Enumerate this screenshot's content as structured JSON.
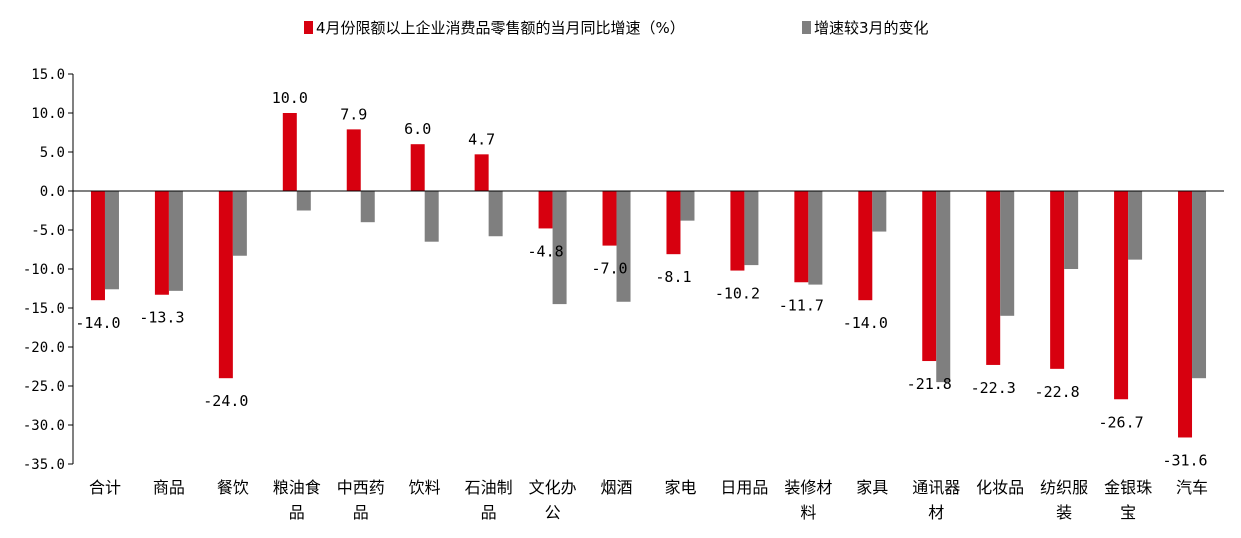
{
  "chart_data": {
    "type": "bar",
    "categories": [
      "合计",
      "商品",
      "餐饮",
      "粮油食品",
      "中西药品",
      "饮料",
      "石油制品",
      "文化办公",
      "烟酒",
      "家电",
      "日用品",
      "装修材料",
      "家具",
      "通讯器材",
      "化妆品",
      "纺织服装",
      "金银珠宝",
      "汽车"
    ],
    "series": [
      {
        "name": "4月份限额以上企业消费品零售额的当月同比增速（%）",
        "color": "#d7000f",
        "values": [
          -14.0,
          -13.3,
          -24.0,
          10.0,
          7.9,
          6.0,
          4.7,
          -4.8,
          -7.0,
          -8.1,
          -10.2,
          -11.7,
          -14.0,
          -21.8,
          -22.3,
          -22.8,
          -26.7,
          -31.6
        ],
        "labels": [
          "-14.0",
          "-13.3",
          "-24.0",
          "10.0",
          "7.9",
          "6.0",
          "4.7",
          "-4.8",
          "-7.0",
          "-8.1",
          "-10.2",
          "-11.7",
          "-14.0",
          "-21.8",
          "-22.3",
          "-22.8",
          "-26.7",
          "-31.6"
        ]
      },
      {
        "name": "增速较3月的变化",
        "color": "#7f7f7f",
        "values": [
          -12.6,
          -12.8,
          -8.3,
          -2.5,
          -4.0,
          -6.5,
          -5.8,
          -14.5,
          -14.2,
          -3.8,
          -9.5,
          -12.0,
          -5.2,
          -24.5,
          -16.0,
          -10.0,
          -8.8,
          -24.0
        ]
      }
    ],
    "ylim": [
      -35,
      15
    ],
    "yticks": [
      "15.0",
      "10.0",
      "5.0",
      "0.0",
      "-5.0",
      "-10.0",
      "-15.0",
      "-20.0",
      "-25.0",
      "-30.0",
      "-35.0"
    ],
    "ytick_values": [
      15,
      10,
      5,
      0,
      -5,
      -10,
      -15,
      -20,
      -25,
      -30,
      -35
    ],
    "legend_position": "top",
    "grid": false
  }
}
